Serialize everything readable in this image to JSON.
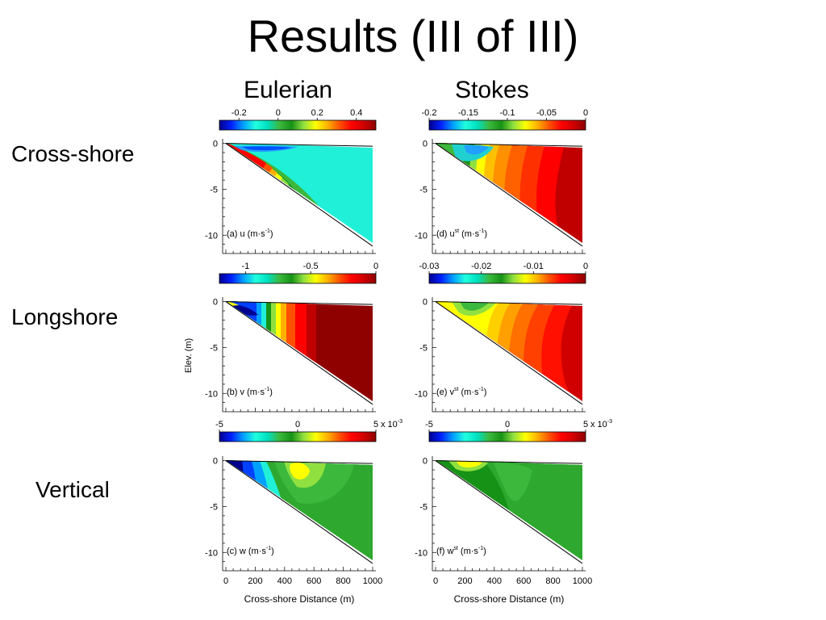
{
  "title": "Results (III of III)",
  "column_headers": {
    "eulerian": "Eulerian",
    "stokes": "Stokes"
  },
  "row_labels": {
    "cross_shore": "Cross-shore",
    "longshore": "Longshore",
    "vertical": "Vertical"
  },
  "axis": {
    "ylabel": "Elev. (m)",
    "xlabel": "Cross-shore Distance (m)",
    "y_ticks": [
      "0",
      "-5",
      "-10"
    ],
    "x_ticks": [
      "0",
      "200",
      "400",
      "600",
      "800",
      "1000"
    ],
    "x_range": [
      0,
      1000
    ],
    "y_range": [
      -12,
      0.5
    ]
  },
  "colorbars": {
    "u": {
      "ticks": [
        "-0.2",
        "0",
        "0.2",
        "0.4"
      ],
      "range": [
        -0.3,
        0.5
      ],
      "exponent": ""
    },
    "ust": {
      "ticks": [
        "-0.2",
        "-0.15",
        "-0.1",
        "-0.05",
        "0"
      ],
      "range": [
        -0.2,
        0
      ],
      "exponent": ""
    },
    "v": {
      "ticks": [
        "-1",
        "-0.5",
        "0"
      ],
      "range": [
        -1.2,
        0
      ],
      "exponent": ""
    },
    "vst": {
      "ticks": [
        "-0.03",
        "-0.02",
        "-0.01",
        "0"
      ],
      "range": [
        -0.03,
        0
      ],
      "exponent": ""
    },
    "w": {
      "ticks": [
        "-5",
        "0",
        "5"
      ],
      "range": [
        -5,
        5
      ],
      "exponent": "x 10-3"
    },
    "wst": {
      "ticks": [
        "-5",
        "0",
        "5"
      ],
      "range": [
        -5,
        5
      ],
      "exponent": "x 10-3"
    }
  },
  "panels": {
    "a": {
      "label": "(a) u (m·s",
      "unit_power": "-1",
      "super": ""
    },
    "b": {
      "label": "(b) v (m·s",
      "unit_power": "-1",
      "super": ""
    },
    "c": {
      "label": "(c) w (m·s",
      "unit_power": "-1",
      "super": ""
    },
    "d": {
      "label": "(d) u",
      "unit_power": "-1",
      "super": "st"
    },
    "e": {
      "label": "(e) v",
      "unit_power": "-1",
      "super": "st"
    },
    "f": {
      "label": "(f) w",
      "unit_power": "-1",
      "super": "st"
    }
  },
  "colors": {
    "jet": [
      "#00008f",
      "#0020ff",
      "#00a0ff",
      "#20ffdf",
      "#00e0c0",
      "#3cb83c",
      "#169216",
      "#90e040",
      "#ffff00",
      "#ffb000",
      "#ff5000",
      "#ff0000",
      "#d00000",
      "#8f0000"
    ]
  }
}
